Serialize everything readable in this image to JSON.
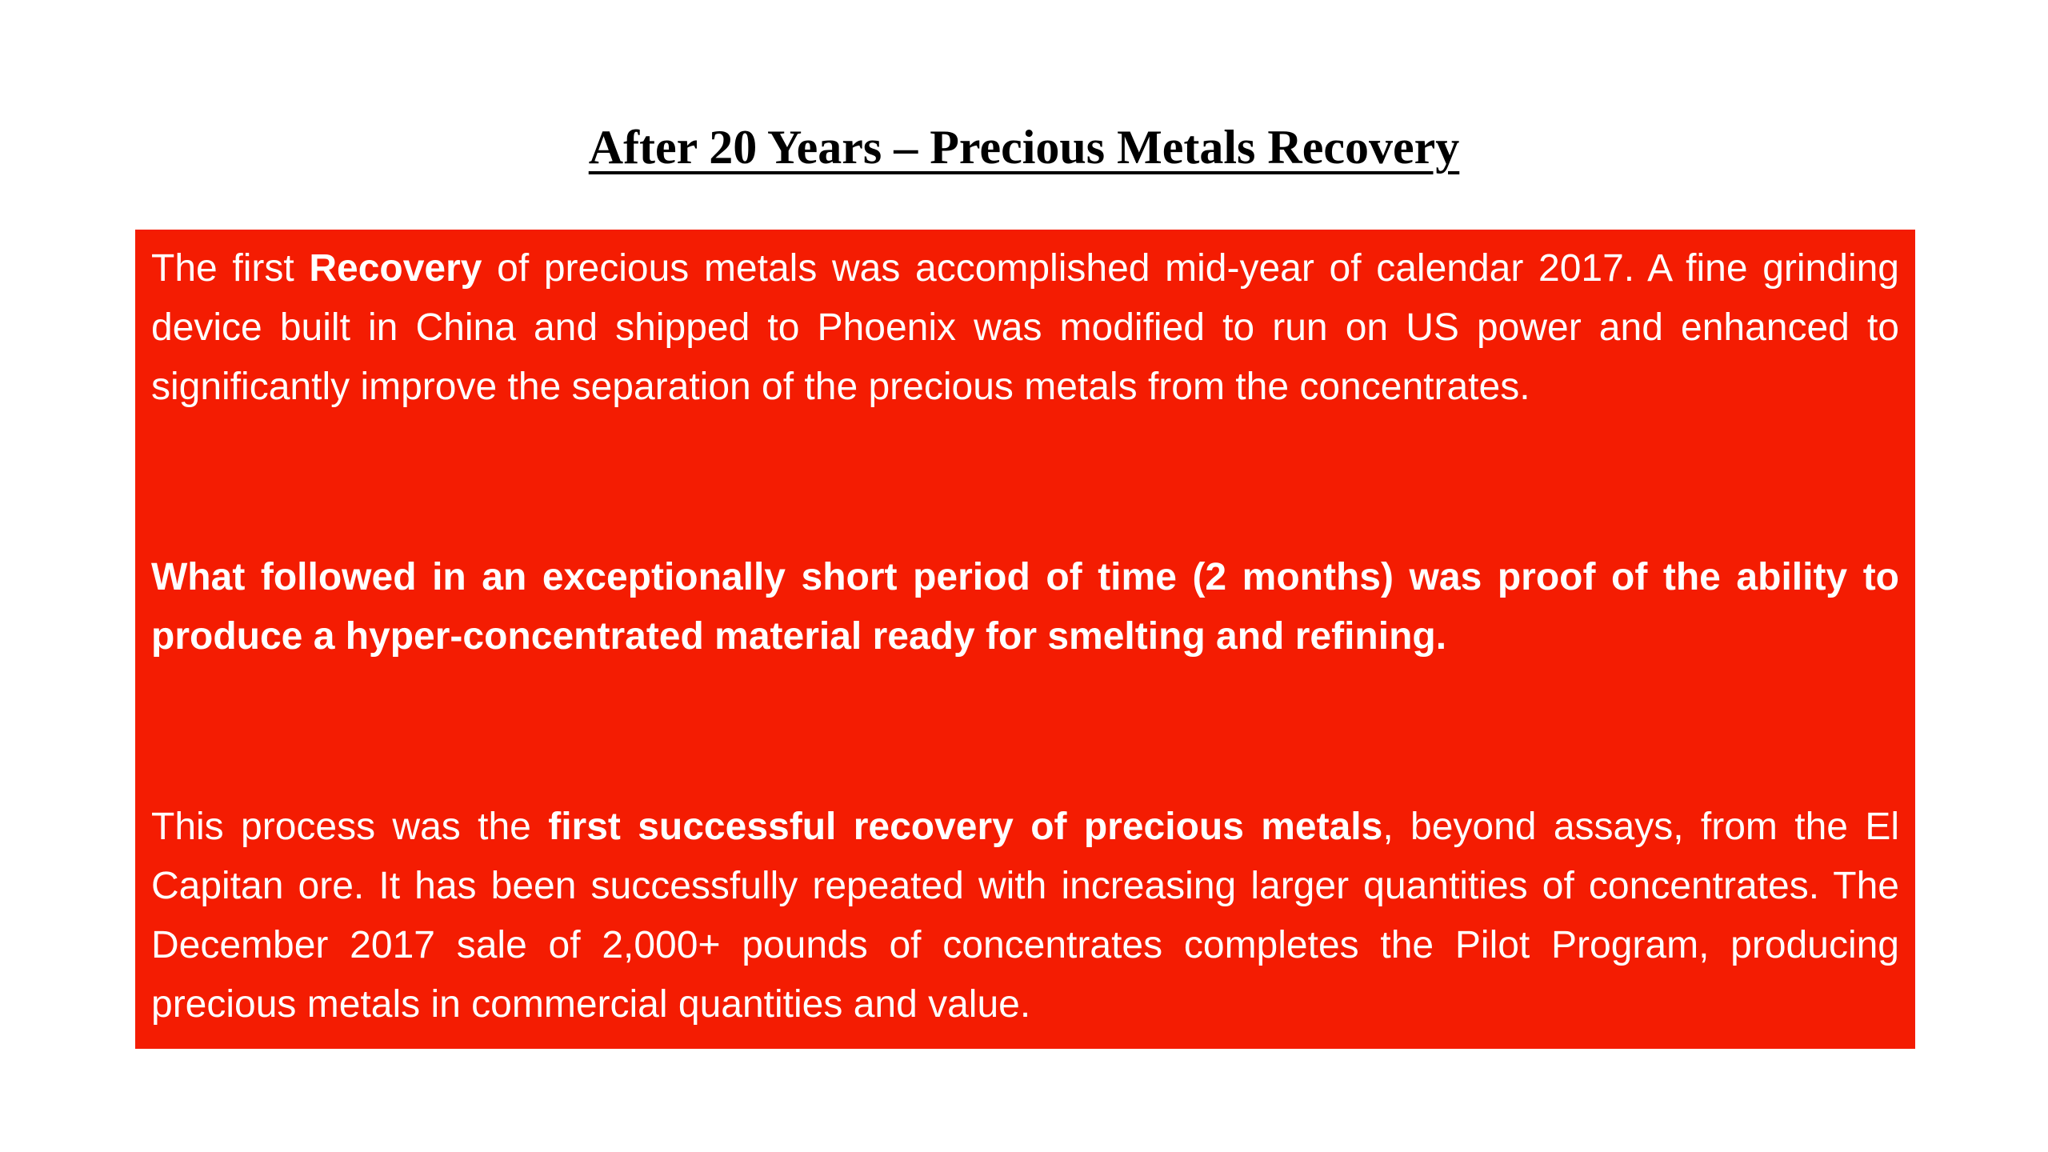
{
  "title": "After 20 Years – Precious Metals Recovery",
  "paragraphs": [
    [
      "The first ",
      "Recovery",
      " of precious metals was accomplished mid-year of calendar 2017. A fine grinding device built in China and shipped to Phoenix was modified to run on US power and enhanced to significantly improve the separation of the precious metals from the concentrates."
    ],
    [
      "What followed in an exceptionally short period of time (2 months) was proof of the ability to produce a hyper-concentrated material ready for smelting and refining."
    ],
    [
      "This process was the ",
      "first successful recovery of precious metals",
      ", beyond assays, from the El Capitan ore. It has been successfully repeated with increasing larger quantities of concentrates. The December 2017 sale of 2,000+ pounds of concentrates completes the Pilot Program, producing precious metals in commercial quantities and value."
    ]
  ]
}
